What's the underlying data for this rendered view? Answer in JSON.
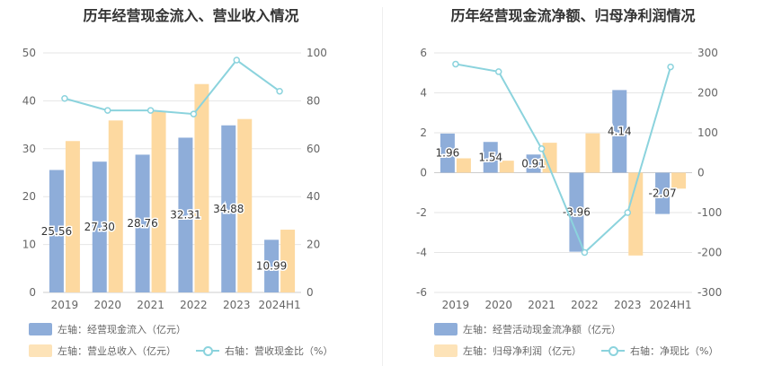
{
  "chart_data": [
    {
      "type": "bar",
      "title": "历年经营现金流入、营业收入情况",
      "categories": [
        "2019",
        "2020",
        "2021",
        "2022",
        "2023",
        "2024H1"
      ],
      "series": [
        {
          "name": "左轴：经营现金流入（亿元）",
          "values": [
            25.56,
            27.3,
            28.76,
            32.31,
            34.88,
            10.99
          ],
          "axis": "left",
          "color": "#8eadd9",
          "labels": [
            "25.56",
            "27.30",
            "28.76",
            "32.31",
            "34.88",
            "10.99"
          ]
        },
        {
          "name": "左轴：营业总收入（亿元）",
          "values": [
            31.6,
            35.9,
            37.8,
            43.5,
            36.2,
            13.1
          ],
          "axis": "left",
          "color": "#fdd9a0"
        },
        {
          "name": "右轴：营收现金比（%）",
          "values": [
            81,
            76,
            76,
            74.5,
            97,
            84
          ],
          "axis": "right",
          "type": "line",
          "color": "#8bd3dd"
        }
      ],
      "left_axis": {
        "ylim": [
          0,
          50
        ],
        "ticks": [
          "0",
          "10",
          "20",
          "30",
          "40",
          "50"
        ]
      },
      "right_axis": {
        "ylim": [
          0,
          100
        ],
        "ticks": [
          "0",
          "20",
          "40",
          "60",
          "80",
          "100"
        ]
      },
      "grid": true,
      "legend_position": "bottom"
    },
    {
      "type": "bar",
      "title": "历年经营现金流净额、归母净利润情况",
      "categories": [
        "2019",
        "2020",
        "2021",
        "2022",
        "2023",
        "2024H1"
      ],
      "series": [
        {
          "name": "左轴：经营活动现金流净额（亿元）",
          "values": [
            1.96,
            1.54,
            0.91,
            -3.96,
            4.14,
            -2.07
          ],
          "axis": "left",
          "color": "#8eadd9",
          "labels": [
            "1.96",
            "1.54",
            "0.91",
            "-3.96",
            "4.14",
            "-2.07"
          ]
        },
        {
          "name": "左轴：归母净利润（亿元）",
          "values": [
            0.72,
            0.6,
            1.5,
            1.97,
            -4.15,
            -0.8
          ],
          "axis": "left",
          "color": "#fdd9a0"
        },
        {
          "name": "右轴：净现比（%）",
          "values": [
            272,
            253,
            60,
            -200,
            -100,
            265
          ],
          "axis": "right",
          "type": "line",
          "color": "#8bd3dd"
        }
      ],
      "left_axis": {
        "ylim": [
          -6,
          6
        ],
        "ticks": [
          "-6",
          "-4",
          "-2",
          "0",
          "2",
          "4",
          "6"
        ]
      },
      "right_axis": {
        "ylim": [
          -300,
          300
        ],
        "ticks": [
          "-300",
          "-200",
          "-100",
          "0",
          "100",
          "200",
          "300"
        ]
      },
      "grid": true,
      "legend_position": "bottom"
    }
  ]
}
